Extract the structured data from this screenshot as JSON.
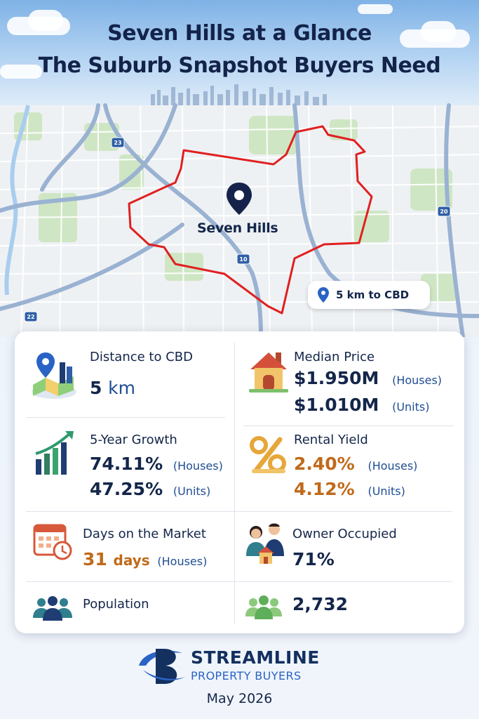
{
  "header": {
    "title_line1": "Seven Hills at a Glance",
    "title_line2": "The Suburb Snapshot Buyers Need"
  },
  "map": {
    "suburb_label": "Seven Hills",
    "cbd_chip": "5 km to CBD",
    "road_numbers": [
      "23",
      "10",
      "20",
      "22"
    ],
    "boundary_color": "#e02020"
  },
  "stats": {
    "distance": {
      "label": "Distance to CBD",
      "value": "5",
      "unit": "km"
    },
    "median_price": {
      "label": "Median Price",
      "houses": "$1.950M",
      "houses_tag": "(Houses)",
      "units": "$1.010M",
      "units_tag": "(Units)"
    },
    "growth": {
      "label": "5-Year Growth",
      "houses": "74.11%",
      "houses_tag": "(Houses)",
      "units": "47.25%",
      "units_tag": "(Units)"
    },
    "rental_yield": {
      "label": "Rental Yield",
      "houses": "2.40%",
      "houses_tag": "(Houses)",
      "units": "4.12%",
      "units_tag": "(Units)"
    },
    "days_on_market": {
      "label": "Days on the Market",
      "value": "31",
      "unit": "days",
      "tag": "(Houses)"
    },
    "owner_occupied": {
      "label": "Owner Occupied",
      "value": "71%"
    },
    "population": {
      "label": "Population",
      "value": "2,732"
    }
  },
  "brand": {
    "name_line1": "STREAMLINE",
    "name_line2": "PROPERTY BUYERS",
    "date": "May 2026",
    "primary_color": "#13305f",
    "accent_color": "#2a63c5"
  },
  "icons": [
    "map-pin-icon",
    "city-map-icon",
    "house-icon",
    "growth-chart-icon",
    "percent-icon",
    "calendar-clock-icon",
    "owners-house-icon",
    "people-group-icon",
    "streamline-logo-icon"
  ]
}
